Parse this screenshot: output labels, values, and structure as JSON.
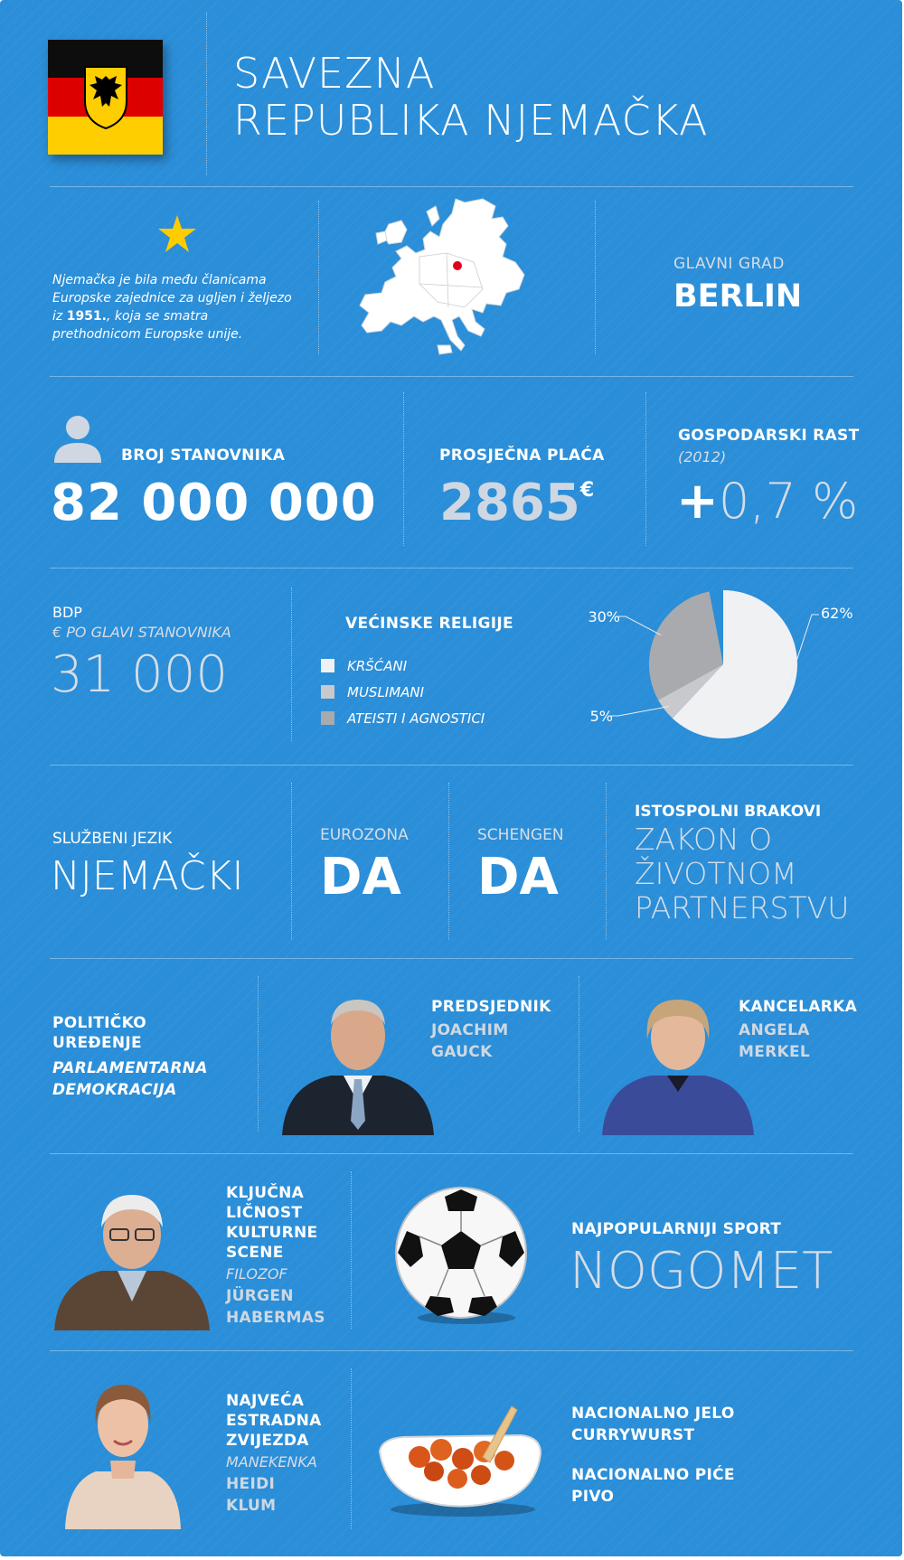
{
  "header": {
    "title_line1": "SAVEZNA",
    "title_line2": "REPUBLIKA NJEMAČKA",
    "flag_colors": [
      "#000000",
      "#dd0000",
      "#ffce00"
    ]
  },
  "eu": {
    "text_before": "Njemačka je bila među članicama Europske zajednice za ugljen i željezo iz ",
    "year": "1951.",
    "text_after": ", koja se smatra prethodnicom Europske unije.",
    "star_color": "#ffcc00",
    "marker_color": "#e0001b"
  },
  "capital": {
    "label": "GLAVNI GRAD",
    "value": "BERLIN"
  },
  "population": {
    "label": "BROJ STANOVNIKA",
    "value": "82 000 000"
  },
  "salary": {
    "label": "PROSJEČNA PLAĆA",
    "value": "2865",
    "unit": "€"
  },
  "growth": {
    "label": "GOSPODARSKI RAST",
    "year": "(2012)",
    "value_sign": "+",
    "value": "0,7 %"
  },
  "gdp": {
    "label": "BDP",
    "sublabel": "€ PO GLAVI STANOVNIKA",
    "value": "31 000"
  },
  "religions": {
    "title": "VEĆINSKE RELIGIJE",
    "legend": [
      "KRŠĆANI",
      "MUSLIMANI",
      "ATEISTI I AGNOSTICI"
    ]
  },
  "chart_data": {
    "type": "pie",
    "title": "VEĆINSKE RELIGIJE",
    "slices": [
      {
        "name": "KRŠĆANI",
        "label": "62%",
        "value": 62,
        "color": "#f0f1f3"
      },
      {
        "name": "MUSLIMANI",
        "label": "5%",
        "value": 5,
        "color": "#c8c9cc"
      },
      {
        "name": "ATEISTI I AGNOSTICI",
        "label": "30%",
        "value": 30,
        "color": "#a9aaad"
      },
      {
        "name": "",
        "label": "",
        "value": 3,
        "color": "#2b8ed8"
      }
    ]
  },
  "language": {
    "label": "SLUŽBENI JEZIK",
    "value": "NJEMAČKI"
  },
  "eurozone": {
    "label": "EUROZONA",
    "value": "DA"
  },
  "schengen": {
    "label": "SCHENGEN",
    "value": "DA"
  },
  "samesex": {
    "label": "ISTOSPOLNI BRAKOVI",
    "line1": "ZAKON O",
    "line2": "ŽIVOTNOM",
    "line3": "PARTNERSTVU"
  },
  "politics": {
    "label_line1": "POLITIČKO",
    "label_line2": "UREĐENJE",
    "value_line1": "PARLAMENTARNA",
    "value_line2": "DEMOKRACIJA"
  },
  "president": {
    "label": "PREDSJEDNIK",
    "name1": "JOACHIM",
    "name2": "GAUCK"
  },
  "chancellor": {
    "label": "KANCELARKA",
    "name1": "ANGELA",
    "name2": "MERKEL"
  },
  "culture": {
    "label1": "KLJUČNA",
    "label2": "LIČNOST",
    "label3": "KULTURNE",
    "label4": "SCENE",
    "role": "FILOZOF",
    "name1": "JÜRGEN",
    "name2": "HABERMAS"
  },
  "sport": {
    "label": "NAJPOPULARNIJI SPORT",
    "value": "NOGOMET"
  },
  "star": {
    "label1": "NAJVEĆA",
    "label2": "ESTRADNA",
    "label3": "ZVIJEZDA",
    "role": "MANEKENKA",
    "name1": "HEIDI",
    "name2": "KLUM"
  },
  "food": {
    "dish_label": "NACIONALNO JELO",
    "dish": "CURRYWURST",
    "drink_label": "NACIONALNO PIĆE",
    "drink": "PIVO"
  }
}
